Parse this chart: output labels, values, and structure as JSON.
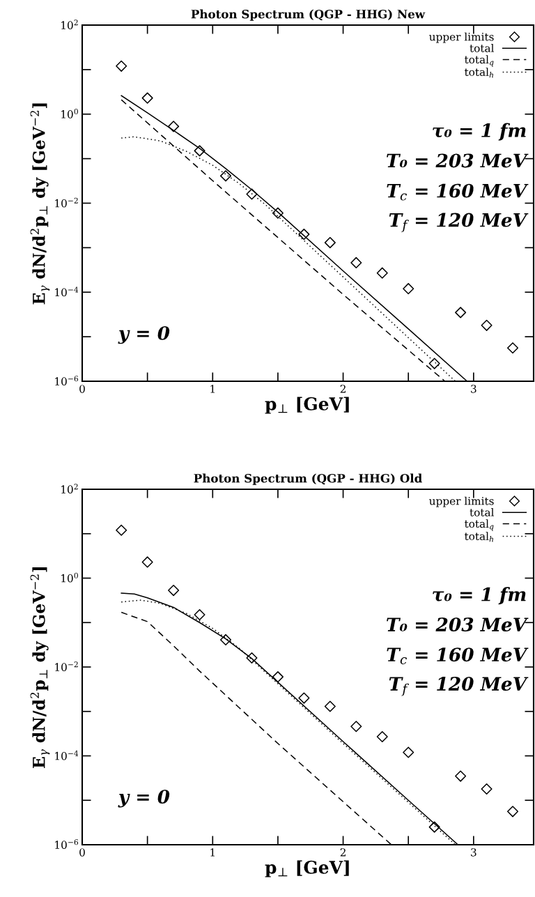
{
  "chart_data": [
    {
      "type": "line",
      "title": "Photon Spectrum (QGP - HHG) New",
      "xlabel": "p$_{⊥}$ [GeV]",
      "ylabel": "E$_{γ}$ dN/d$^{2}$p$_{⊥}$ dy [GeV$^{−2}$]",
      "log": "y",
      "xlim": [
        0,
        3.46
      ],
      "ylim": [
        1e-06,
        100
      ],
      "xticks": [
        0,
        {
          "value": 0.5,
          "label": null
        },
        1,
        {
          "value": 1.5,
          "label": null
        },
        2,
        {
          "value": 2.5,
          "label": null
        },
        3
      ],
      "yticks": [
        {
          "value": 1e-06,
          "label": "10$^{−6}$"
        },
        {
          "value": 1e-05,
          "label": null
        },
        {
          "value": 0.0001,
          "label": "10$^{−4}$"
        },
        {
          "value": 0.001,
          "label": null
        },
        {
          "value": 0.01,
          "label": "10$^{−2}$"
        },
        {
          "value": 0.1,
          "label": null
        },
        {
          "value": 1,
          "label": "10$^{0}$"
        },
        {
          "value": 10,
          "label": null
        },
        {
          "value": 100,
          "label": "10$^{2}$"
        }
      ],
      "grid": false,
      "legend": "top right",
      "annotations": [
        "τ₀ = 1 fm",
        "T₀ = 203 MeV",
        "T$_{c}$ = 160 MeV",
        "T$_{f}$ = 120 MeV",
        "y = 0"
      ],
      "series": [
        {
          "name": "upper limits",
          "type": "scatter",
          "marker": "diamond",
          "color": "#000000",
          "x": [
            0.3,
            0.5,
            0.7,
            0.9,
            1.1,
            1.3,
            1.5,
            1.7,
            1.9,
            2.1,
            2.3,
            2.5,
            2.7,
            2.9,
            3.1,
            3.3
          ],
          "values": [
            12,
            2.3,
            0.53,
            0.15,
            0.041,
            0.016,
            0.006,
            0.002,
            0.0013,
            0.00046,
            0.00027,
            0.00012,
            2.5e-06,
            3.5e-05,
            1.8e-05,
            5.6e-06
          ]
        },
        {
          "name": "total",
          "line_style": "solid",
          "color": "#000000",
          "x": [
            0.3,
            0.5,
            0.7,
            0.9,
            1.1,
            1.3,
            1.5,
            2.0,
            2.5,
            2.95
          ],
          "values": [
            2.6,
            1.07,
            0.43,
            0.17,
            0.06,
            0.02,
            0.0063,
            0.0003,
            1.5e-05,
            1e-06
          ]
        },
        {
          "name": "total$_{q}$",
          "line_style": "dashed",
          "color": "#000000",
          "x": [
            0.3,
            1.0,
            2.0,
            2.78
          ],
          "values": [
            2.1,
            0.032,
            8.9e-05,
            1e-06
          ]
        },
        {
          "name": "total$_{h}$",
          "line_style": "dotted",
          "color": "#000000",
          "x": [
            0.3,
            0.4,
            0.6,
            0.8,
            1.0,
            1.2,
            1.4,
            2.0,
            2.5,
            2.86
          ],
          "values": [
            0.29,
            0.31,
            0.25,
            0.145,
            0.071,
            0.028,
            0.0095,
            0.00022,
            9.5e-06,
            1e-06
          ]
        }
      ]
    },
    {
      "type": "line",
      "title": "Photon Spectrum (QGP - HHG) Old",
      "xlabel": "p$_{⊥}$ [GeV]",
      "ylabel": "E$_{γ}$ dN/d$^{2}$p$_{⊥}$ dy [GeV$^{−2}$]",
      "log": "y",
      "xlim": [
        0,
        3.46
      ],
      "ylim": [
        1e-06,
        100
      ],
      "xticks": [
        0,
        {
          "value": 0.5,
          "label": null
        },
        1,
        {
          "value": 1.5,
          "label": null
        },
        2,
        {
          "value": 2.5,
          "label": null
        },
        3
      ],
      "yticks": [
        {
          "value": 1e-06,
          "label": "10$^{−6}$"
        },
        {
          "value": 1e-05,
          "label": null
        },
        {
          "value": 0.0001,
          "label": "10$^{−4}$"
        },
        {
          "value": 0.001,
          "label": null
        },
        {
          "value": 0.01,
          "label": "10$^{−2}$"
        },
        {
          "value": 0.1,
          "label": null
        },
        {
          "value": 1,
          "label": "10$^{0}$"
        },
        {
          "value": 10,
          "label": null
        },
        {
          "value": 100,
          "label": "10$^{2}$"
        }
      ],
      "grid": false,
      "legend": "top right",
      "annotations": [
        "τ₀ = 1 fm",
        "T₀ = 203 MeV",
        "T$_{c}$ = 160 MeV",
        "T$_{f}$ = 120 MeV",
        "y = 0"
      ],
      "series": [
        {
          "name": "upper limits",
          "type": "scatter",
          "marker": "diamond",
          "color": "#000000",
          "x": [
            0.3,
            0.5,
            0.7,
            0.9,
            1.1,
            1.3,
            1.5,
            1.7,
            1.9,
            2.1,
            2.3,
            2.5,
            2.7,
            2.9,
            3.1,
            3.3
          ],
          "values": [
            12,
            2.3,
            0.53,
            0.15,
            0.041,
            0.016,
            0.006,
            0.002,
            0.0013,
            0.00046,
            0.00027,
            0.00012,
            2.5e-06,
            3.5e-05,
            1.8e-05,
            5.6e-06
          ]
        },
        {
          "name": "total",
          "line_style": "solid",
          "color": "#000000",
          "x": [
            0.3,
            0.4,
            0.5,
            0.7,
            0.9,
            1.1,
            1.3,
            2.0,
            2.5,
            2.88
          ],
          "values": [
            0.46,
            0.44,
            0.36,
            0.22,
            0.1,
            0.043,
            0.0155,
            0.00021,
            1e-05,
            1e-06
          ]
        },
        {
          "name": "total$_{q}$",
          "line_style": "dashed",
          "color": "#000000",
          "x": [
            0.3,
            0.5,
            0.7,
            0.9,
            1.5,
            2.0,
            2.37
          ],
          "values": [
            0.17,
            0.105,
            0.03,
            0.0081,
            0.00019,
            9.3e-06,
            1e-06
          ]
        },
        {
          "name": "total$_{h}$",
          "line_style": "dotted",
          "color": "#000000",
          "x": [
            0.3,
            0.45,
            0.6,
            0.8,
            1.0,
            1.2,
            2.0,
            2.5,
            2.86
          ],
          "values": [
            0.29,
            0.32,
            0.27,
            0.16,
            0.074,
            0.027,
            0.00019,
            9e-06,
            1e-06
          ]
        }
      ]
    }
  ]
}
